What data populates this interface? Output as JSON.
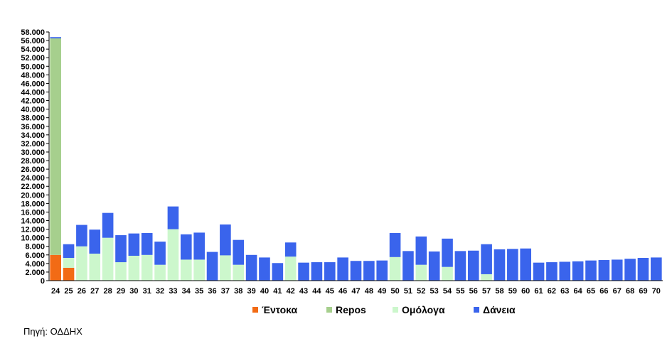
{
  "chart_data": {
    "type": "bar",
    "stacked": true,
    "categories": [
      "24",
      "25",
      "26",
      "27",
      "28",
      "29",
      "30",
      "31",
      "32",
      "33",
      "34",
      "35",
      "36",
      "37",
      "38",
      "39",
      "40",
      "41",
      "42",
      "43",
      "44",
      "45",
      "46",
      "47",
      "48",
      "49",
      "50",
      "51",
      "52",
      "53",
      "54",
      "55",
      "56",
      "57",
      "58",
      "59",
      "60",
      "61",
      "62",
      "63",
      "64",
      "65",
      "66",
      "67",
      "68",
      "69",
      "70"
    ],
    "series": [
      {
        "name": "Έντοκα",
        "color": "#f26b15",
        "values": [
          6000,
          3000,
          0,
          0,
          0,
          0,
          0,
          0,
          0,
          0,
          0,
          0,
          0,
          0,
          0,
          0,
          0,
          0,
          0,
          0,
          0,
          0,
          0,
          0,
          0,
          0,
          0,
          0,
          0,
          0,
          0,
          0,
          0,
          0,
          0,
          0,
          0,
          0,
          0,
          0,
          0,
          0,
          0,
          0,
          0,
          0,
          0
        ]
      },
      {
        "name": "Repos",
        "color": "#a6cf8d",
        "values": [
          50500,
          0,
          0,
          0,
          0,
          0,
          0,
          0,
          0,
          0,
          0,
          0,
          0,
          0,
          0,
          0,
          0,
          0,
          0,
          0,
          0,
          0,
          0,
          0,
          0,
          0,
          0,
          0,
          0,
          0,
          0,
          0,
          0,
          0,
          0,
          0,
          0,
          0,
          0,
          0,
          0,
          0,
          0,
          0,
          0,
          0,
          0
        ]
      },
      {
        "name": "Ομόλογα",
        "color": "#ccf7cc",
        "values": [
          0,
          2300,
          8000,
          6300,
          10000,
          4300,
          5800,
          6000,
          3700,
          12000,
          4900,
          4900,
          0,
          5900,
          3700,
          0,
          0,
          0,
          5600,
          0,
          0,
          0,
          0,
          0,
          0,
          0,
          5500,
          0,
          3700,
          0,
          3200,
          0,
          0,
          1500,
          0,
          0,
          0,
          0,
          0,
          0,
          0,
          0,
          0,
          0,
          0,
          0,
          0
        ]
      },
      {
        "name": "Δάνεια",
        "color": "#3a64ec",
        "values": [
          300,
          3200,
          5000,
          5600,
          5800,
          6300,
          5200,
          5100,
          5400,
          5300,
          5900,
          6300,
          6700,
          7200,
          5800,
          6000,
          5400,
          4100,
          3300,
          4200,
          4300,
          4300,
          5400,
          4600,
          4600,
          4700,
          5600,
          6900,
          6600,
          6800,
          6600,
          6900,
          7000,
          7000,
          7300,
          7400,
          7500,
          4200,
          4300,
          4400,
          4500,
          4700,
          4800,
          4900,
          5100,
          5300,
          5400
        ]
      }
    ],
    "ylim": [
      0,
      58000
    ],
    "yticks": [
      "0",
      "2.000",
      "4.000",
      "6.000",
      "8.000",
      "10.000",
      "12.000",
      "14.000",
      "16.000",
      "18.000",
      "20.000",
      "22.000",
      "24.000",
      "26.000",
      "28.000",
      "30.000",
      "32.000",
      "34.000",
      "36.000",
      "38.000",
      "40.000",
      "42.000",
      "44.000",
      "46.000",
      "48.000",
      "50.000",
      "52.000",
      "54.000",
      "56.000",
      "58.000"
    ],
    "legend": "bottom",
    "grid": false
  },
  "source": "Πηγή: ΟΔΔΗΧ"
}
